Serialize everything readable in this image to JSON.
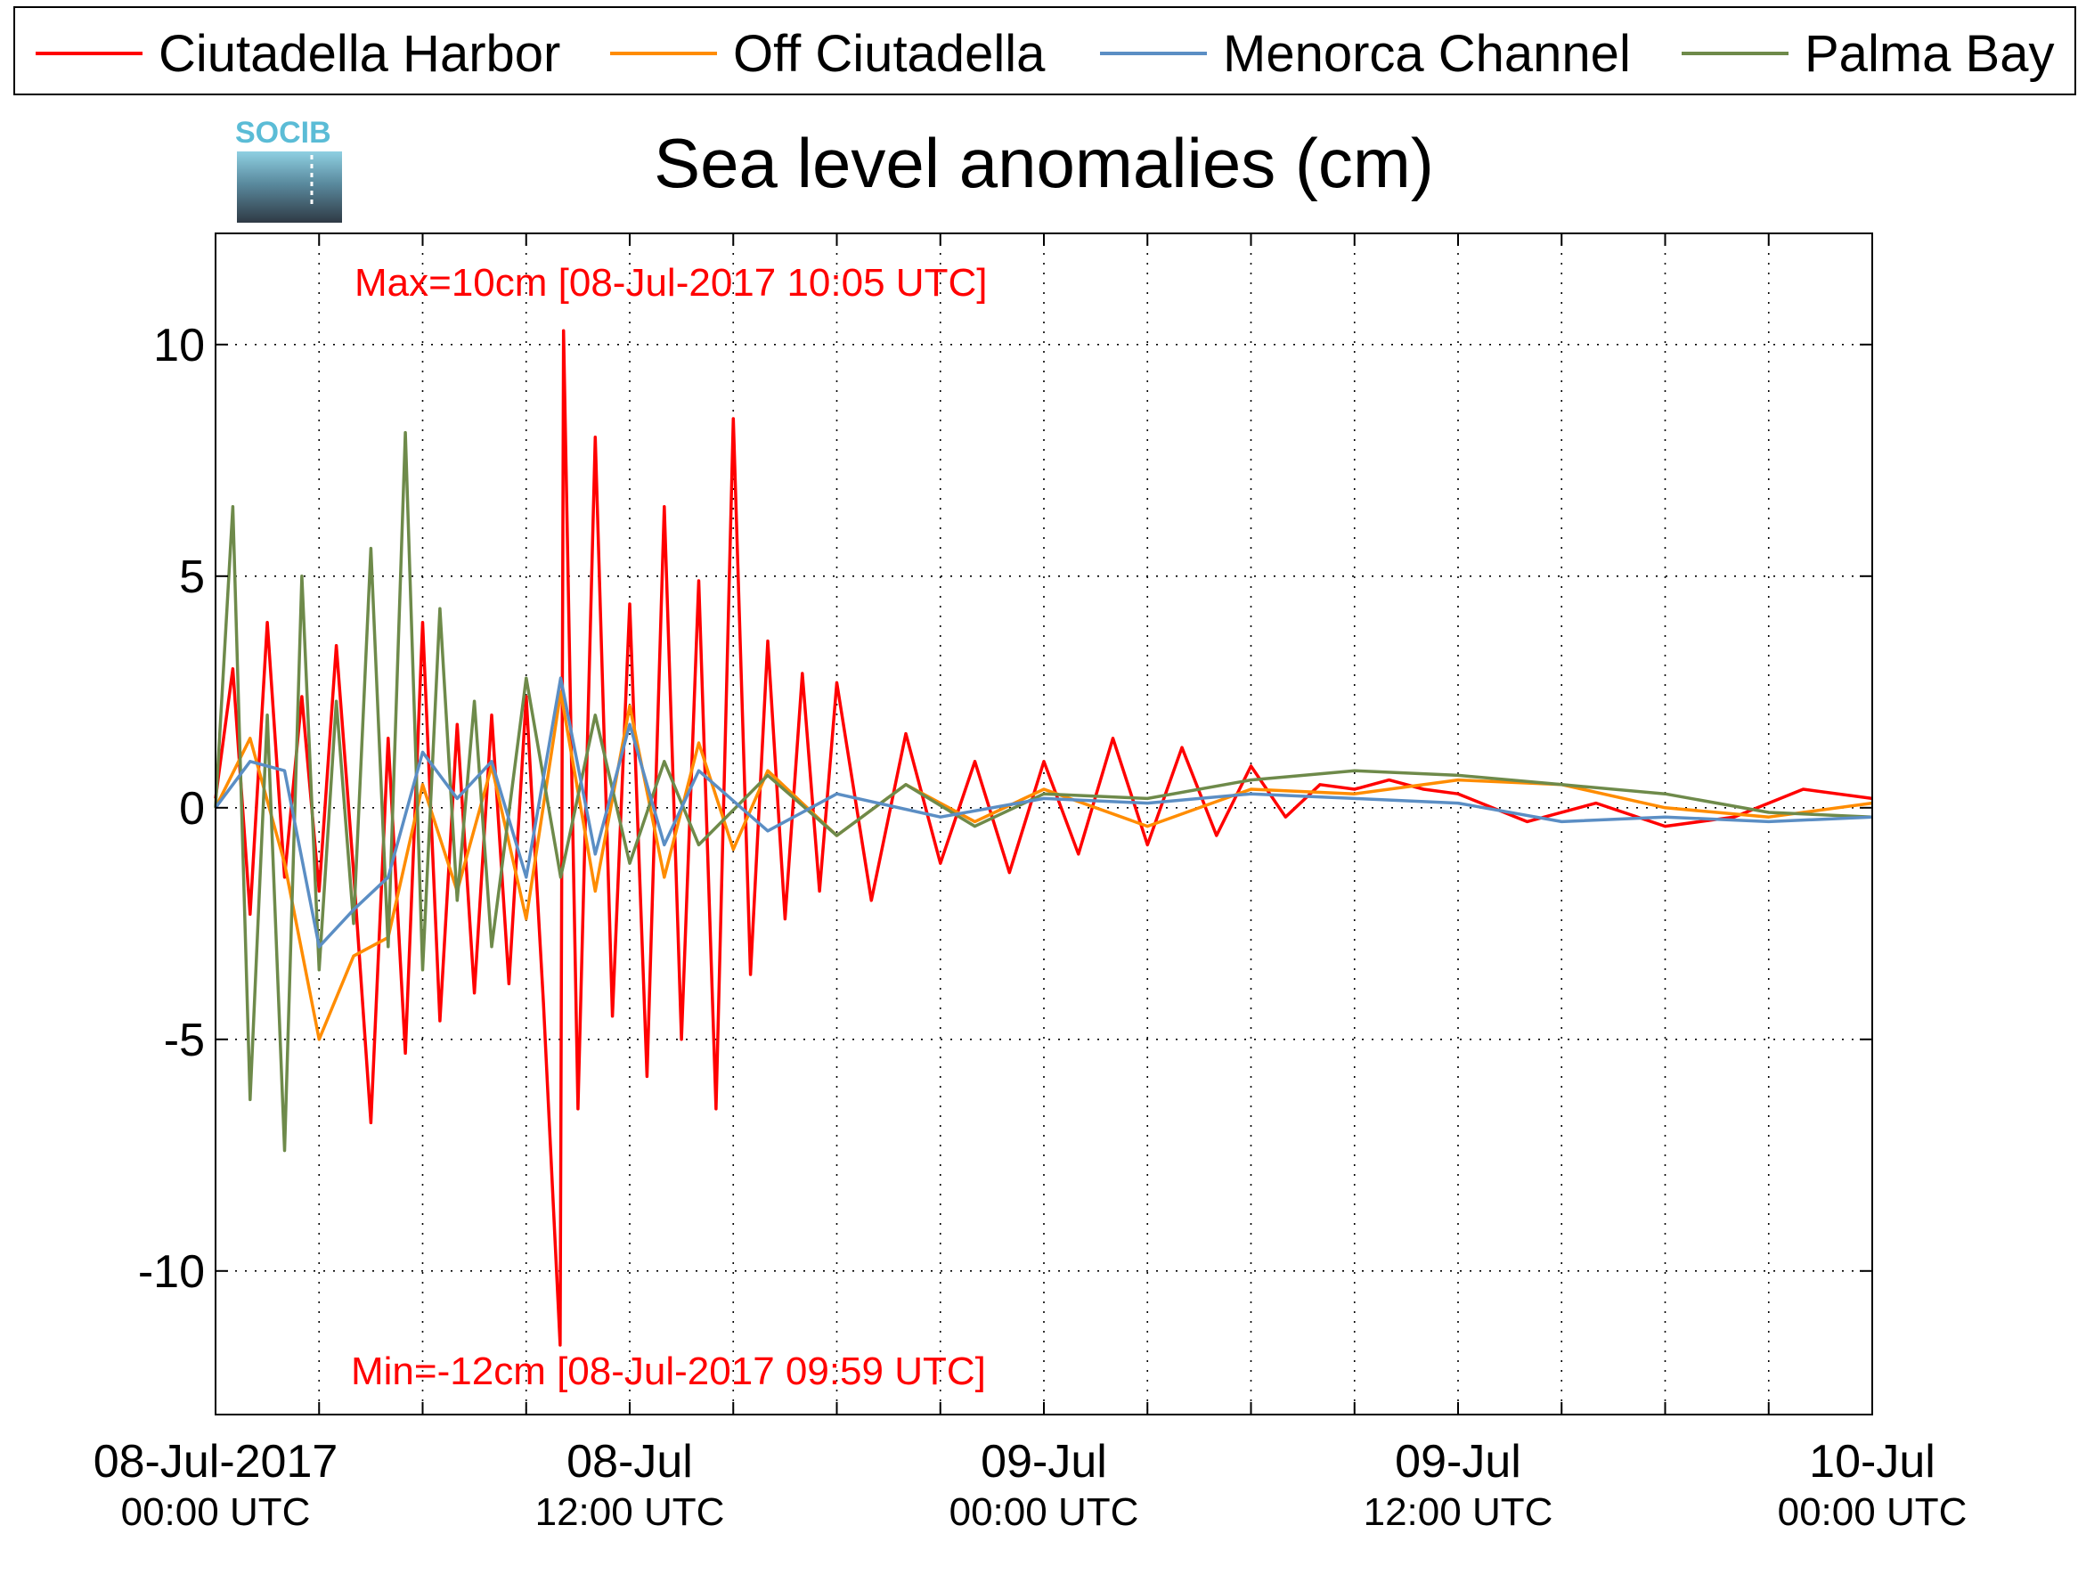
{
  "logo": {
    "text": "SOCIB"
  },
  "colors": {
    "ciutadella_harbor": "#ff0000",
    "off_ciutadella": "#ff8c00",
    "menorca_channel": "#5b8ec4",
    "palma_bay": "#6e8a4a",
    "annotation": "#ff0000",
    "logo_accent": "#5bbcd6"
  },
  "chart_data": {
    "type": "line",
    "title": "Sea level anomalies (cm)",
    "ylabel": "",
    "xlabel": "",
    "ylim": [
      -13.1,
      12.4
    ],
    "xlim": [
      "2017-07-08T00:00:00Z",
      "2017-07-10T00:00:00Z"
    ],
    "yticks": [
      10,
      5,
      0,
      -5,
      -10
    ],
    "ytick_labels": [
      "10",
      "5",
      "0",
      "-5",
      "-10"
    ],
    "xticks": [
      {
        "x": "2017-07-08T00:00:00Z",
        "label": "08-Jul-2017",
        "sub": "00:00 UTC"
      },
      {
        "x": "2017-07-08T12:00:00Z",
        "label": "08-Jul",
        "sub": "12:00 UTC"
      },
      {
        "x": "2017-07-09T00:00:00Z",
        "label": "09-Jul",
        "sub": "00:00 UTC"
      },
      {
        "x": "2017-07-09T12:00:00Z",
        "label": "09-Jul",
        "sub": "12:00 UTC"
      },
      {
        "x": "2017-07-10T00:00:00Z",
        "label": "10-Jul",
        "sub": "00:00 UTC"
      }
    ],
    "minor_xtick_hours": 3,
    "grid": true,
    "legend_position": "top",
    "annotations": {
      "max": "Max=10cm [08-Jul-2017 10:05 UTC]",
      "min": "Min=-12cm [08-Jul-2017 09:59 UTC]"
    },
    "series": [
      {
        "name": "Ciutadella Harbor",
        "color": "#ff0000",
        "x": [
          "2017-07-08T00:00:00Z",
          "2017-07-08T00:30:00Z",
          "2017-07-08T01:00:00Z",
          "2017-07-08T01:30:00Z",
          "2017-07-08T02:00:00Z",
          "2017-07-08T02:30:00Z",
          "2017-07-08T03:00:00Z",
          "2017-07-08T03:30:00Z",
          "2017-07-08T04:00:00Z",
          "2017-07-08T04:30:00Z",
          "2017-07-08T05:00:00Z",
          "2017-07-08T05:30:00Z",
          "2017-07-08T06:00:00Z",
          "2017-07-08T06:30:00Z",
          "2017-07-08T07:00:00Z",
          "2017-07-08T07:30:00Z",
          "2017-07-08T08:00:00Z",
          "2017-07-08T08:30:00Z",
          "2017-07-08T09:00:00Z",
          "2017-07-08T09:30:00Z",
          "2017-07-08T09:59:00Z",
          "2017-07-08T10:05:00Z",
          "2017-07-08T10:30:00Z",
          "2017-07-08T11:00:00Z",
          "2017-07-08T11:30:00Z",
          "2017-07-08T12:00:00Z",
          "2017-07-08T12:30:00Z",
          "2017-07-08T13:00:00Z",
          "2017-07-08T13:30:00Z",
          "2017-07-08T14:00:00Z",
          "2017-07-08T14:30:00Z",
          "2017-07-08T15:00:00Z",
          "2017-07-08T15:30:00Z",
          "2017-07-08T16:00:00Z",
          "2017-07-08T16:30:00Z",
          "2017-07-08T17:00:00Z",
          "2017-07-08T17:30:00Z",
          "2017-07-08T18:00:00Z",
          "2017-07-08T19:00:00Z",
          "2017-07-08T20:00:00Z",
          "2017-07-08T21:00:00Z",
          "2017-07-08T22:00:00Z",
          "2017-07-08T23:00:00Z",
          "2017-07-09T00:00:00Z",
          "2017-07-09T01:00:00Z",
          "2017-07-09T02:00:00Z",
          "2017-07-09T03:00:00Z",
          "2017-07-09T04:00:00Z",
          "2017-07-09T05:00:00Z",
          "2017-07-09T06:00:00Z",
          "2017-07-09T07:00:00Z",
          "2017-07-09T08:00:00Z",
          "2017-07-09T09:00:00Z",
          "2017-07-09T10:00:00Z",
          "2017-07-09T11:00:00Z",
          "2017-07-09T12:00:00Z",
          "2017-07-09T14:00:00Z",
          "2017-07-09T16:00:00Z",
          "2017-07-09T18:00:00Z",
          "2017-07-09T20:00:00Z",
          "2017-07-09T22:00:00Z",
          "2017-07-10T00:00:00Z"
        ],
        "y": [
          0.2,
          3.0,
          -2.3,
          4.0,
          -1.5,
          2.4,
          -1.8,
          3.5,
          -1.4,
          -6.8,
          1.5,
          -5.3,
          4.0,
          -4.6,
          1.8,
          -4.0,
          2.0,
          -3.8,
          2.4,
          -4.2,
          -11.6,
          10.3,
          -6.5,
          8.0,
          -4.5,
          4.4,
          -5.8,
          6.5,
          -5.0,
          4.9,
          -6.5,
          8.4,
          -3.6,
          3.6,
          -2.4,
          2.9,
          -1.8,
          2.7,
          -2.0,
          1.6,
          -1.2,
          1.0,
          -1.4,
          1.0,
          -1.0,
          1.5,
          -0.8,
          1.3,
          -0.6,
          0.9,
          -0.2,
          0.5,
          0.4,
          0.6,
          0.4,
          0.3,
          -0.3,
          0.1,
          -0.4,
          -0.2,
          0.4,
          0.2
        ]
      },
      {
        "name": "Off Ciutadella",
        "color": "#ff8c00",
        "x": [
          "2017-07-08T00:00:00Z",
          "2017-07-08T01:00:00Z",
          "2017-07-08T02:00:00Z",
          "2017-07-08T03:00:00Z",
          "2017-07-08T04:00:00Z",
          "2017-07-08T05:00:00Z",
          "2017-07-08T06:00:00Z",
          "2017-07-08T07:00:00Z",
          "2017-07-08T08:00:00Z",
          "2017-07-08T09:00:00Z",
          "2017-07-08T10:00:00Z",
          "2017-07-08T11:00:00Z",
          "2017-07-08T12:00:00Z",
          "2017-07-08T13:00:00Z",
          "2017-07-08T14:00:00Z",
          "2017-07-08T15:00:00Z",
          "2017-07-08T16:00:00Z",
          "2017-07-08T18:00:00Z",
          "2017-07-08T20:00:00Z",
          "2017-07-08T22:00:00Z",
          "2017-07-09T00:00:00Z",
          "2017-07-09T03:00:00Z",
          "2017-07-09T06:00:00Z",
          "2017-07-09T09:00:00Z",
          "2017-07-09T12:00:00Z",
          "2017-07-09T15:00:00Z",
          "2017-07-09T18:00:00Z",
          "2017-07-09T21:00:00Z",
          "2017-07-10T00:00:00Z"
        ],
        "y": [
          0.0,
          1.5,
          -1.2,
          -5.0,
          -3.2,
          -2.8,
          0.5,
          -1.8,
          0.9,
          -2.4,
          2.5,
          -1.8,
          2.2,
          -1.5,
          1.4,
          -0.9,
          0.8,
          -0.6,
          0.5,
          -0.3,
          0.4,
          -0.4,
          0.4,
          0.3,
          0.6,
          0.5,
          0.0,
          -0.2,
          0.1
        ]
      },
      {
        "name": "Menorca Channel",
        "color": "#5b8ec4",
        "x": [
          "2017-07-08T00:00:00Z",
          "2017-07-08T01:00:00Z",
          "2017-07-08T02:00:00Z",
          "2017-07-08T03:00:00Z",
          "2017-07-08T04:00:00Z",
          "2017-07-08T05:00:00Z",
          "2017-07-08T06:00:00Z",
          "2017-07-08T07:00:00Z",
          "2017-07-08T08:00:00Z",
          "2017-07-08T09:00:00Z",
          "2017-07-08T10:00:00Z",
          "2017-07-08T11:00:00Z",
          "2017-07-08T12:00:00Z",
          "2017-07-08T13:00:00Z",
          "2017-07-08T14:00:00Z",
          "2017-07-08T16:00:00Z",
          "2017-07-08T18:00:00Z",
          "2017-07-08T21:00:00Z",
          "2017-07-09T00:00:00Z",
          "2017-07-09T03:00:00Z",
          "2017-07-09T06:00:00Z",
          "2017-07-09T09:00:00Z",
          "2017-07-09T12:00:00Z",
          "2017-07-09T15:00:00Z",
          "2017-07-09T18:00:00Z",
          "2017-07-09T21:00:00Z",
          "2017-07-10T00:00:00Z"
        ],
        "y": [
          0.0,
          1.0,
          0.8,
          -3.0,
          -2.2,
          -1.5,
          1.2,
          0.2,
          1.0,
          -1.5,
          2.8,
          -1.0,
          1.8,
          -0.8,
          0.8,
          -0.5,
          0.3,
          -0.2,
          0.2,
          0.1,
          0.3,
          0.2,
          0.1,
          -0.3,
          -0.2,
          -0.3,
          -0.2
        ]
      },
      {
        "name": "Palma Bay",
        "color": "#6e8a4a",
        "x": [
          "2017-07-08T00:00:00Z",
          "2017-07-08T00:30:00Z",
          "2017-07-08T01:00:00Z",
          "2017-07-08T01:30:00Z",
          "2017-07-08T02:00:00Z",
          "2017-07-08T02:30:00Z",
          "2017-07-08T03:00:00Z",
          "2017-07-08T03:30:00Z",
          "2017-07-08T04:00:00Z",
          "2017-07-08T04:30:00Z",
          "2017-07-08T05:00:00Z",
          "2017-07-08T05:30:00Z",
          "2017-07-08T06:00:00Z",
          "2017-07-08T06:30:00Z",
          "2017-07-08T07:00:00Z",
          "2017-07-08T07:30:00Z",
          "2017-07-08T08:00:00Z",
          "2017-07-08T09:00:00Z",
          "2017-07-08T10:00:00Z",
          "2017-07-08T11:00:00Z",
          "2017-07-08T12:00:00Z",
          "2017-07-08T13:00:00Z",
          "2017-07-08T14:00:00Z",
          "2017-07-08T16:00:00Z",
          "2017-07-08T18:00:00Z",
          "2017-07-08T20:00:00Z",
          "2017-07-08T22:00:00Z",
          "2017-07-09T00:00:00Z",
          "2017-07-09T03:00:00Z",
          "2017-07-09T06:00:00Z",
          "2017-07-09T09:00:00Z",
          "2017-07-09T12:00:00Z",
          "2017-07-09T15:00:00Z",
          "2017-07-09T18:00:00Z",
          "2017-07-09T21:00:00Z",
          "2017-07-10T00:00:00Z"
        ],
        "y": [
          0.0,
          6.5,
          -6.3,
          2.0,
          -7.4,
          5.0,
          -3.5,
          2.3,
          -2.5,
          5.6,
          -3.0,
          8.1,
          -3.5,
          4.3,
          -2.0,
          2.3,
          -3.0,
          2.8,
          -1.5,
          2.0,
          -1.2,
          1.0,
          -0.8,
          0.7,
          -0.6,
          0.5,
          -0.4,
          0.3,
          0.2,
          0.6,
          0.8,
          0.7,
          0.5,
          0.3,
          -0.1,
          -0.2
        ]
      }
    ]
  }
}
